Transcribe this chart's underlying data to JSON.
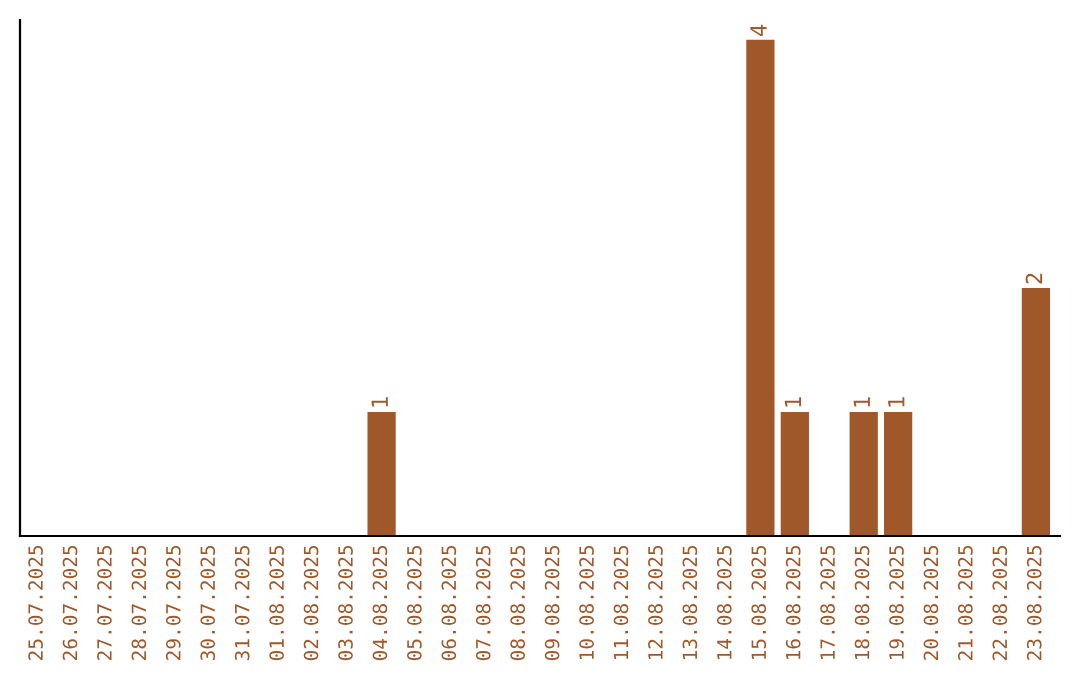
{
  "chart_data": {
    "type": "bar",
    "categories": [
      "25.07.2025",
      "26.07.2025",
      "27.07.2025",
      "28.07.2025",
      "29.07.2025",
      "30.07.2025",
      "31.07.2025",
      "01.08.2025",
      "02.08.2025",
      "03.08.2025",
      "04.08.2025",
      "05.08.2025",
      "06.08.2025",
      "07.08.2025",
      "08.08.2025",
      "09.08.2025",
      "10.08.2025",
      "11.08.2025",
      "12.08.2025",
      "13.08.2025",
      "14.08.2025",
      "15.08.2025",
      "16.08.2025",
      "17.08.2025",
      "18.08.2025",
      "19.08.2025",
      "20.08.2025",
      "21.08.2025",
      "22.08.2025",
      "23.08.2025"
    ],
    "values": [
      0,
      0,
      0,
      0,
      0,
      0,
      0,
      0,
      0,
      0,
      1,
      0,
      0,
      0,
      0,
      0,
      0,
      0,
      0,
      0,
      0,
      4,
      1,
      0,
      1,
      1,
      0,
      0,
      0,
      2
    ],
    "value_labels": [
      null,
      null,
      null,
      null,
      null,
      null,
      null,
      null,
      null,
      null,
      "1",
      null,
      null,
      null,
      null,
      null,
      null,
      null,
      null,
      null,
      null,
      "4",
      "1",
      null,
      "1",
      "1",
      null,
      null,
      null,
      "2"
    ],
    "color": "#a0582a",
    "grid": false,
    "legend": false
  }
}
